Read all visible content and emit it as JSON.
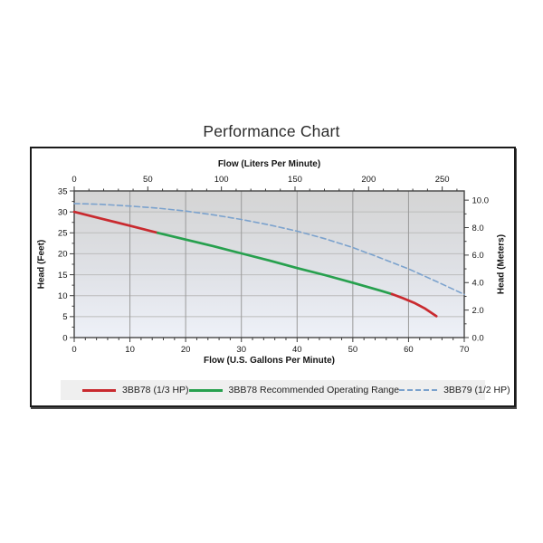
{
  "title": "Performance Chart",
  "colors": {
    "red": "#c92a2f",
    "green": "#27a04e",
    "blue": "#7ba2cd",
    "plot_bg_top": "#d4d4d4",
    "plot_bg_mid": "#dfe1e6",
    "plot_bg_bottom": "#eef1f8",
    "grid_vertical": "#9a9a9a",
    "grid_horizontal": "#bcbcbc",
    "plot_border": "#454545",
    "tick": "#3c3c3c",
    "tick_text": "#141414",
    "legend_bg": "#efefef",
    "box_border": "#1b1b1b"
  },
  "chart_data": {
    "type": "line",
    "title": "Performance Chart",
    "axes": {
      "bottom": {
        "label": "Flow (U.S. Gallons Per Minute)",
        "min": 0,
        "max": 70,
        "major_ticks": [
          0,
          10,
          20,
          30,
          40,
          50,
          60,
          70
        ],
        "minor_step": 2
      },
      "top": {
        "label": "Flow (Liters Per Minute)",
        "unit_per_gallon": 3.78541,
        "major_ticks": [
          0,
          50,
          100,
          150,
          200,
          250
        ],
        "minor_step": 10
      },
      "left": {
        "label": "Head (Feet)",
        "min": 0,
        "max": 35,
        "major_ticks": [
          0,
          5,
          10,
          15,
          20,
          25,
          30,
          35
        ],
        "minor_step": 2.5
      },
      "right": {
        "label": "Head (Meters)",
        "feet_per_meter": 3.28084,
        "major_ticks": [
          0,
          2,
          4,
          6,
          8,
          10
        ],
        "minor_step": 1,
        "decimals": 1
      }
    },
    "grid": {
      "vertical_at_gallons": [
        10,
        20,
        30,
        40,
        50,
        60
      ],
      "horizontal_at_feet": [
        5,
        10,
        15,
        20,
        25,
        30
      ]
    },
    "series": [
      {
        "id": "3bb78-low-flow",
        "name": "3BB78 (1/3 HP)",
        "color_key": "red",
        "dashed": false,
        "width": 2.7,
        "points": [
          [
            0,
            30.0
          ],
          [
            5,
            28.35
          ],
          [
            10,
            26.7
          ],
          [
            15,
            25.0
          ]
        ]
      },
      {
        "id": "3bb78-recommended",
        "name": "3BB78 Recommended Operating Range",
        "color_key": "green",
        "dashed": false,
        "width": 2.7,
        "points": [
          [
            15,
            25.0
          ],
          [
            20,
            23.4
          ],
          [
            25,
            21.8
          ],
          [
            30,
            20.1
          ],
          [
            35,
            18.4
          ],
          [
            40,
            16.6
          ],
          [
            45,
            14.9
          ],
          [
            50,
            13.1
          ],
          [
            55,
            11.2
          ],
          [
            57,
            10.4
          ]
        ]
      },
      {
        "id": "3bb78-high-flow",
        "name": "3BB78 (1/3 HP)",
        "color_key": "red",
        "dashed": false,
        "width": 2.7,
        "points": [
          [
            57,
            10.4
          ],
          [
            59,
            9.4
          ],
          [
            61,
            8.3
          ],
          [
            63,
            6.9
          ],
          [
            65,
            5.1
          ]
        ]
      },
      {
        "id": "3bb79",
        "name": "3BB79 (1/2 HP)",
        "color_key": "blue",
        "dashed": true,
        "width": 1.6,
        "points": [
          [
            0,
            32.0
          ],
          [
            5,
            31.8
          ],
          [
            10,
            31.4
          ],
          [
            15,
            30.9
          ],
          [
            20,
            30.2
          ],
          [
            25,
            29.3
          ],
          [
            30,
            28.2
          ],
          [
            35,
            26.9
          ],
          [
            40,
            25.4
          ],
          [
            45,
            23.6
          ],
          [
            50,
            21.5
          ],
          [
            55,
            19.0
          ],
          [
            60,
            16.4
          ],
          [
            65,
            13.4
          ],
          [
            70,
            10.3
          ]
        ]
      }
    ],
    "legend": [
      {
        "label": "3BB78 (1/3 HP)",
        "color_key": "red",
        "dashed": false
      },
      {
        "label": "3BB78 Recommended Operating Range",
        "color_key": "green",
        "dashed": false
      },
      {
        "label": "3BB79 (1/2 HP)",
        "color_key": "blue",
        "dashed": true
      }
    ]
  }
}
